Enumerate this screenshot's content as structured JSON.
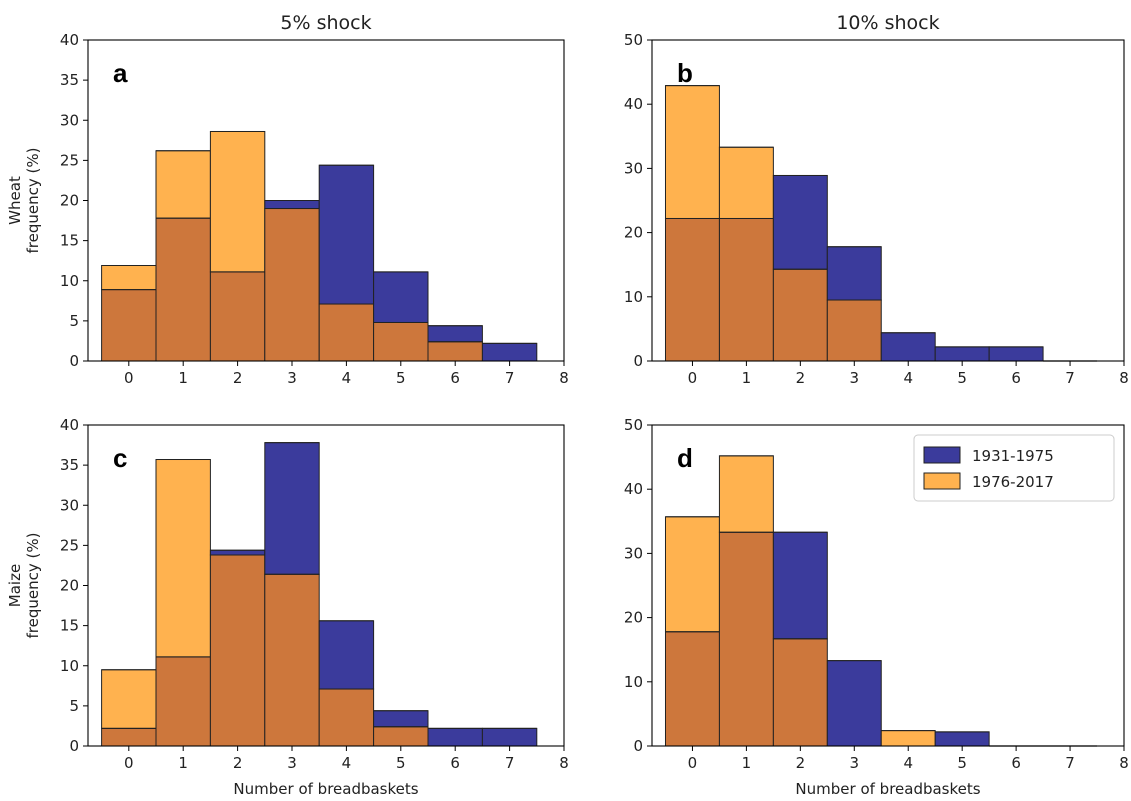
{
  "colors": {
    "early": "#3b3b9c",
    "late": "#ffb24f",
    "overlap": "#cd773c",
    "edge": "#222222"
  },
  "legend": {
    "placement": "top-right",
    "entries": [
      "1931-1975",
      "1976-2017"
    ]
  },
  "chart_data": [
    {
      "type": "histogram",
      "panel": "a",
      "title": "5% shock",
      "ylabel": [
        "Wheat",
        "frequency (%)"
      ],
      "xlabel": "",
      "xlim": [
        -0.75,
        8
      ],
      "ylim": [
        0,
        40
      ],
      "xticks": [
        0,
        1,
        2,
        3,
        4,
        5,
        6,
        7,
        8
      ],
      "yticks": [
        0,
        5,
        10,
        15,
        20,
        25,
        30,
        35,
        40
      ],
      "grid": false,
      "categories": [
        0,
        1,
        2,
        3,
        4,
        5,
        6,
        7
      ],
      "series": [
        {
          "name": "1931-1975",
          "values": [
            8.9,
            17.8,
            11.1,
            20.0,
            24.4,
            11.1,
            4.4,
            2.2
          ]
        },
        {
          "name": "1976-2017",
          "values": [
            11.9,
            26.2,
            28.6,
            19.0,
            7.1,
            4.8,
            2.4,
            0
          ]
        }
      ]
    },
    {
      "type": "histogram",
      "panel": "b",
      "title": "10% shock",
      "ylabel": [],
      "xlabel": "",
      "xlim": [
        -0.75,
        8
      ],
      "ylim": [
        0,
        50
      ],
      "xticks": [
        0,
        1,
        2,
        3,
        4,
        5,
        6,
        7,
        8
      ],
      "yticks": [
        0,
        10,
        20,
        30,
        40,
        50
      ],
      "grid": false,
      "categories": [
        0,
        1,
        2,
        3,
        4,
        5,
        6,
        7
      ],
      "series": [
        {
          "name": "1931-1975",
          "values": [
            22.2,
            22.2,
            28.9,
            17.8,
            4.4,
            2.2,
            2.2,
            0
          ]
        },
        {
          "name": "1976-2017",
          "values": [
            42.9,
            33.3,
            14.3,
            9.5,
            0,
            0,
            0,
            0
          ]
        }
      ]
    },
    {
      "type": "histogram",
      "panel": "c",
      "title": "",
      "ylabel": [
        "Maize",
        "frequency (%)"
      ],
      "xlabel": "Number of breadbaskets",
      "xlim": [
        -0.75,
        8
      ],
      "ylim": [
        0,
        40
      ],
      "xticks": [
        0,
        1,
        2,
        3,
        4,
        5,
        6,
        7,
        8
      ],
      "yticks": [
        0,
        5,
        10,
        15,
        20,
        25,
        30,
        35,
        40
      ],
      "grid": false,
      "categories": [
        0,
        1,
        2,
        3,
        4,
        5,
        6,
        7
      ],
      "series": [
        {
          "name": "1931-1975",
          "values": [
            2.2,
            11.1,
            24.4,
            37.8,
            15.6,
            4.4,
            2.2,
            2.2
          ]
        },
        {
          "name": "1976-2017",
          "values": [
            9.5,
            35.7,
            23.8,
            21.4,
            7.1,
            2.4,
            0,
            0
          ]
        }
      ]
    },
    {
      "type": "histogram",
      "panel": "d",
      "title": "",
      "ylabel": [],
      "xlabel": "Number of breadbaskets",
      "xlim": [
        -0.75,
        8
      ],
      "ylim": [
        0,
        50
      ],
      "xticks": [
        0,
        1,
        2,
        3,
        4,
        5,
        6,
        7,
        8
      ],
      "yticks": [
        0,
        10,
        20,
        30,
        40,
        50
      ],
      "grid": false,
      "legend": true,
      "categories": [
        0,
        1,
        2,
        3,
        4,
        5,
        6,
        7
      ],
      "series": [
        {
          "name": "1931-1975",
          "values": [
            17.8,
            33.3,
            33.3,
            13.3,
            0,
            2.2,
            0,
            0
          ]
        },
        {
          "name": "1976-2017",
          "values": [
            35.7,
            45.2,
            16.7,
            0,
            2.4,
            0,
            0,
            0
          ]
        }
      ]
    }
  ]
}
